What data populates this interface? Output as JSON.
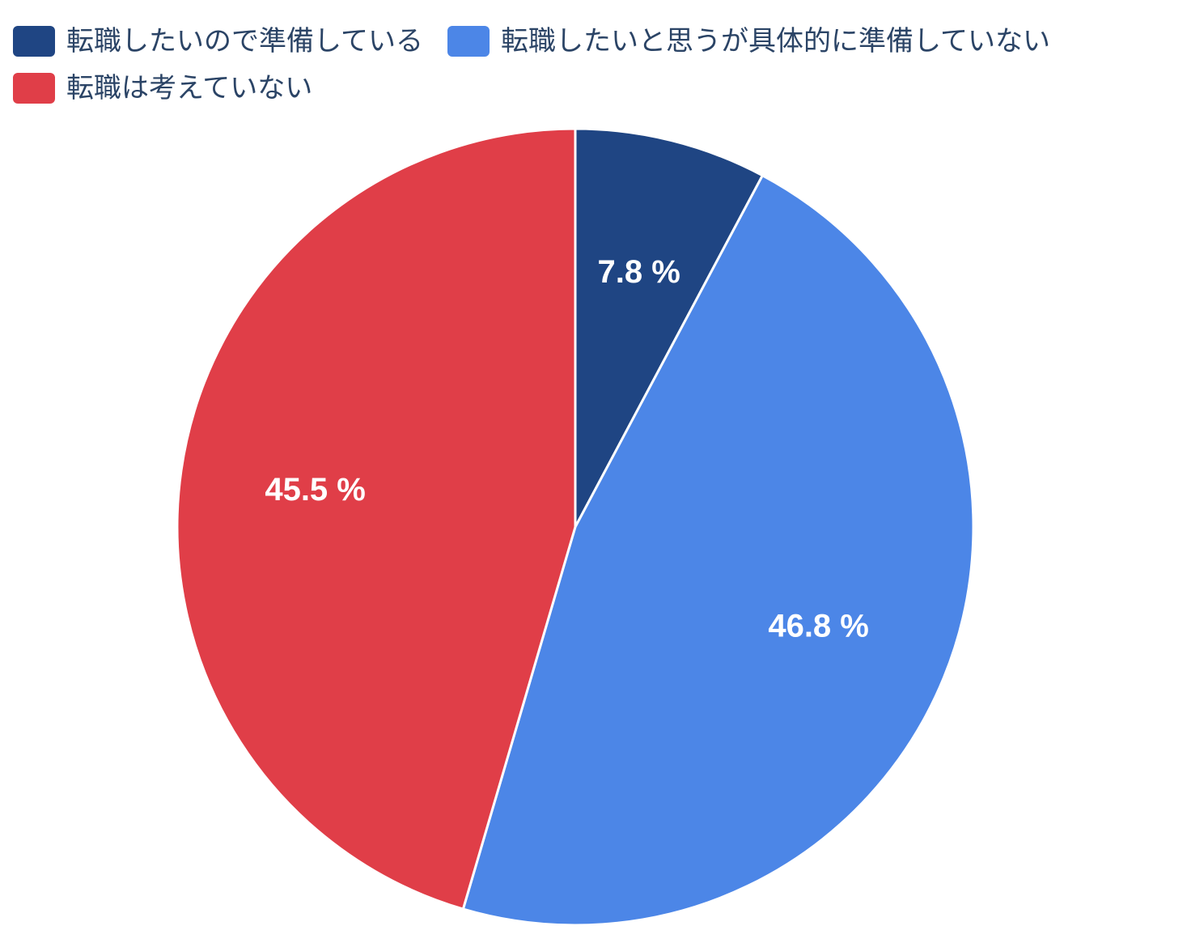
{
  "chart_data": {
    "type": "pie",
    "legend_position": "top",
    "series": [
      {
        "name": "転職したいので準備している",
        "value": 7.8,
        "label": "7.8 %",
        "color": "#1f4583"
      },
      {
        "name": "転職したいと思うが具体的に準備していない",
        "value": 46.8,
        "label": "46.8 %",
        "color": "#4c86e7"
      },
      {
        "name": "転職は考えていない",
        "value": 45.5,
        "label": "45.5 %",
        "color": "#e03e48"
      }
    ]
  }
}
